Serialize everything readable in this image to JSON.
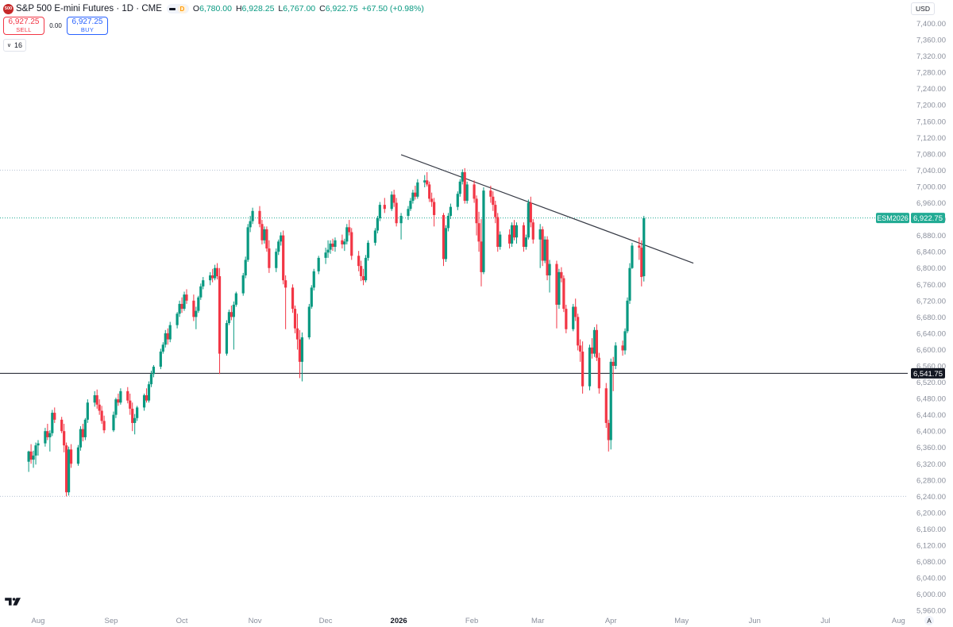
{
  "header": {
    "logo_text": "500",
    "symbol": "S&P 500 E-mini Futures",
    "interval": "1D",
    "exchange": "CME",
    "market_badge": "D",
    "open_label": "O",
    "open_value": "6,780.00",
    "high_label": "H",
    "high_value": "6,928.25",
    "low_label": "L",
    "low_value": "6,767.00",
    "close_label": "C",
    "close_value": "6,922.75",
    "change": "+67.50 (+0.98%)"
  },
  "trade": {
    "sell_price": "6,927.25",
    "sell_label": "SELL",
    "spread": "0.00",
    "buy_price": "6,927.25",
    "buy_label": "BUY"
  },
  "quantity": "16",
  "currency": "USD",
  "auto_label": "A",
  "colors": {
    "up": "#089981",
    "down": "#f23645",
    "grid_dotted": "#b7c3d3",
    "last_price": "#22ab94",
    "axis_text": "#8a8f9c"
  },
  "chart_data": {
    "type": "candlestick",
    "symbol_label": "ESM2026",
    "last_price": 6922.75,
    "last_price_label": "6,922.75",
    "y_axis": {
      "min": 5960,
      "max": 7400,
      "step": 40,
      "tick_labels": [
        "7,400.00",
        "7,360.00",
        "7,320.00",
        "7,280.00",
        "7,240.00",
        "7,200.00",
        "7,160.00",
        "7,120.00",
        "7,080.00",
        "7,040.00",
        "7,000.00",
        "6,960.00",
        "6,920.00",
        "6,880.00",
        "6,840.00",
        "6,800.00",
        "6,760.00",
        "6,720.00",
        "6,680.00",
        "6,640.00",
        "6,600.00",
        "6,560.00",
        "6,520.00",
        "6,480.00",
        "6,440.00",
        "6,400.00",
        "6,360.00",
        "6,320.00",
        "6,280.00",
        "6,240.00",
        "6,200.00",
        "6,160.00",
        "6,120.00",
        "6,080.00",
        "6,040.00",
        "6,000.00",
        "5,960.00"
      ]
    },
    "x_axis": {
      "labels": [
        "Aug",
        "Sep",
        "Oct",
        "Nov",
        "Dec",
        "2026",
        "Feb",
        "Mar",
        "Apr",
        "May",
        "Jun",
        "Jul",
        "Aug"
      ]
    },
    "horizontal_levels": [
      {
        "value": 6541.75,
        "label": "6,541.75",
        "style": "solid"
      },
      {
        "value": 7040,
        "style": "dotted"
      },
      {
        "value": 6240,
        "style": "dotted"
      }
    ],
    "trendline": {
      "from": {
        "date": "2026-01-02",
        "value": 7078
      },
      "to": {
        "date": "2026-05-06",
        "value": 6812
      }
    },
    "candles": [
      [
        "2025-07-28",
        6325,
        6352,
        6300,
        6350
      ],
      [
        "2025-07-29",
        6350,
        6368,
        6320,
        6330
      ],
      [
        "2025-07-30",
        6330,
        6352,
        6310,
        6340
      ],
      [
        "2025-07-31",
        6340,
        6372,
        6318,
        6365
      ],
      [
        "2025-08-01",
        6365,
        6378,
        6340,
        6370
      ],
      [
        "2025-08-04",
        6370,
        6408,
        6362,
        6400
      ],
      [
        "2025-08-05",
        6400,
        6418,
        6378,
        6385
      ],
      [
        "2025-08-06",
        6385,
        6402,
        6350,
        6395
      ],
      [
        "2025-08-07",
        6395,
        6452,
        6388,
        6445
      ],
      [
        "2025-08-08",
        6445,
        6458,
        6420,
        6428
      ],
      [
        "2025-08-11",
        6428,
        6435,
        6395,
        6400
      ],
      [
        "2025-08-12",
        6400,
        6418,
        6348,
        6365
      ],
      [
        "2025-08-13",
        6365,
        6372,
        6240,
        6250
      ],
      [
        "2025-08-14",
        6250,
        6362,
        6242,
        6355
      ],
      [
        "2025-08-15",
        6355,
        6368,
        6310,
        6320
      ],
      [
        "2025-08-18",
        6320,
        6366,
        6315,
        6360
      ],
      [
        "2025-08-19",
        6360,
        6412,
        6352,
        6405
      ],
      [
        "2025-08-20",
        6405,
        6418,
        6375,
        6385
      ],
      [
        "2025-08-21",
        6385,
        6432,
        6378,
        6428
      ],
      [
        "2025-08-22",
        6428,
        6478,
        6420,
        6470
      ],
      [
        "2025-08-25",
        6470,
        6498,
        6460,
        6488
      ],
      [
        "2025-08-26",
        6488,
        6502,
        6455,
        6465
      ],
      [
        "2025-08-27",
        6465,
        6478,
        6440,
        6450
      ],
      [
        "2025-08-28",
        6450,
        6462,
        6418,
        6425
      ],
      [
        "2025-08-29",
        6425,
        6438,
        6395,
        6402
      ],
      [
        "2025-09-02",
        6402,
        6448,
        6398,
        6440
      ],
      [
        "2025-09-03",
        6440,
        6482,
        6432,
        6478
      ],
      [
        "2025-09-04",
        6478,
        6492,
        6462,
        6470
      ],
      [
        "2025-09-05",
        6470,
        6505,
        6465,
        6498
      ],
      [
        "2025-09-08",
        6498,
        6508,
        6468,
        6475
      ],
      [
        "2025-09-09",
        6475,
        6492,
        6440,
        6455
      ],
      [
        "2025-09-10",
        6455,
        6470,
        6400,
        6420
      ],
      [
        "2025-09-11",
        6420,
        6442,
        6392,
        6432
      ],
      [
        "2025-09-12",
        6432,
        6462,
        6425,
        6458
      ],
      [
        "2025-09-15",
        6458,
        6492,
        6450,
        6488
      ],
      [
        "2025-09-16",
        6488,
        6505,
        6470,
        6475
      ],
      [
        "2025-09-17",
        6475,
        6522,
        6470,
        6515
      ],
      [
        "2025-09-18",
        6515,
        6548,
        6508,
        6540
      ],
      [
        "2025-09-19",
        6540,
        6562,
        6532,
        6558
      ],
      [
        "2025-09-22",
        6558,
        6602,
        6552,
        6595
      ],
      [
        "2025-09-23",
        6595,
        6618,
        6590,
        6612
      ],
      [
        "2025-09-24",
        6612,
        6648,
        6605,
        6640
      ],
      [
        "2025-09-25",
        6640,
        6652,
        6612,
        6625
      ],
      [
        "2025-09-26",
        6625,
        6668,
        6618,
        6660
      ],
      [
        "2025-09-29",
        6660,
        6692,
        6652,
        6688
      ],
      [
        "2025-09-30",
        6688,
        6720,
        6680,
        6712
      ],
      [
        "2025-10-01",
        6712,
        6728,
        6690,
        6700
      ],
      [
        "2025-10-02",
        6700,
        6742,
        6695,
        6735
      ],
      [
        "2025-10-03",
        6735,
        6748,
        6712,
        6720
      ],
      [
        "2025-10-06",
        6720,
        6735,
        6670,
        6680
      ],
      [
        "2025-10-07",
        6680,
        6705,
        6650,
        6695
      ],
      [
        "2025-10-08",
        6695,
        6732,
        6690,
        6728
      ],
      [
        "2025-10-09",
        6728,
        6762,
        6722,
        6755
      ],
      [
        "2025-10-10",
        6755,
        6778,
        6748,
        6770
      ],
      [
        "2025-10-13",
        6770,
        6790,
        6758,
        6782
      ],
      [
        "2025-10-14",
        6782,
        6798,
        6765,
        6775
      ],
      [
        "2025-10-15",
        6775,
        6808,
        6770,
        6800
      ],
      [
        "2025-10-16",
        6800,
        6812,
        6772,
        6780
      ],
      [
        "2025-10-17",
        6780,
        6800,
        6540,
        6590
      ],
      [
        "2025-10-20",
        6590,
        6672,
        6585,
        6665
      ],
      [
        "2025-10-21",
        6665,
        6698,
        6660,
        6692
      ],
      [
        "2025-10-22",
        6692,
        6708,
        6672,
        6680
      ],
      [
        "2025-10-23",
        6680,
        6718,
        6600,
        6710
      ],
      [
        "2025-10-24",
        6710,
        6742,
        6705,
        6738
      ],
      [
        "2025-10-27",
        6738,
        6788,
        6732,
        6782
      ],
      [
        "2025-10-28",
        6782,
        6828,
        6775,
        6820
      ],
      [
        "2025-10-29",
        6820,
        6908,
        6815,
        6900
      ],
      [
        "2025-10-30",
        6900,
        6928,
        6888,
        6915
      ],
      [
        "2025-10-31",
        6915,
        6948,
        6908,
        6940
      ],
      [
        "2025-11-03",
        6940,
        6952,
        6900,
        6908
      ],
      [
        "2025-11-04",
        6908,
        6918,
        6858,
        6868
      ],
      [
        "2025-11-05",
        6868,
        6902,
        6860,
        6895
      ],
      [
        "2025-11-06",
        6895,
        6902,
        6840,
        6848
      ],
      [
        "2025-11-07",
        6848,
        6868,
        6788,
        6800
      ],
      [
        "2025-11-10",
        6800,
        6848,
        6790,
        6840
      ],
      [
        "2025-11-11",
        6840,
        6870,
        6832,
        6865
      ],
      [
        "2025-11-12",
        6865,
        6888,
        6855,
        6880
      ],
      [
        "2025-11-13",
        6880,
        6892,
        6760,
        6770
      ],
      [
        "2025-11-14",
        6770,
        6782,
        6650,
        6752
      ],
      [
        "2025-11-17",
        6752,
        6760,
        6690,
        6700
      ],
      [
        "2025-11-18",
        6700,
        6708,
        6640,
        6652
      ],
      [
        "2025-11-19",
        6652,
        6688,
        6600,
        6625
      ],
      [
        "2025-11-20",
        6625,
        6648,
        6530,
        6570
      ],
      [
        "2025-11-21",
        6570,
        6642,
        6522,
        6630
      ],
      [
        "2025-11-24",
        6630,
        6712,
        6625,
        6705
      ],
      [
        "2025-11-25",
        6705,
        6758,
        6700,
        6752
      ],
      [
        "2025-11-26",
        6752,
        6798,
        6745,
        6792
      ],
      [
        "2025-11-28",
        6792,
        6830,
        6785,
        6825
      ],
      [
        "2025-12-01",
        6825,
        6850,
        6810,
        6838
      ],
      [
        "2025-12-02",
        6838,
        6868,
        6825,
        6845
      ],
      [
        "2025-12-03",
        6845,
        6868,
        6835,
        6860
      ],
      [
        "2025-12-04",
        6860,
        6872,
        6842,
        6852
      ],
      [
        "2025-12-05",
        6852,
        6875,
        6840,
        6868
      ],
      [
        "2025-12-08",
        6868,
        6882,
        6848,
        6858
      ],
      [
        "2025-12-09",
        6858,
        6872,
        6842,
        6865
      ],
      [
        "2025-12-10",
        6865,
        6908,
        6858,
        6900
      ],
      [
        "2025-12-11",
        6900,
        6918,
        6880,
        6888
      ],
      [
        "2025-12-12",
        6888,
        6898,
        6820,
        6830
      ],
      [
        "2025-12-15",
        6830,
        6842,
        6792,
        6805
      ],
      [
        "2025-12-16",
        6805,
        6818,
        6768,
        6780
      ],
      [
        "2025-12-17",
        6780,
        6798,
        6758,
        6770
      ],
      [
        "2025-12-18",
        6770,
        6832,
        6765,
        6825
      ],
      [
        "2025-12-19",
        6825,
        6868,
        6818,
        6862
      ],
      [
        "2025-12-22",
        6862,
        6898,
        6855,
        6892
      ],
      [
        "2025-12-23",
        6892,
        6928,
        6885,
        6922
      ],
      [
        "2025-12-24",
        6922,
        6962,
        6915,
        6955
      ],
      [
        "2025-12-26",
        6955,
        6972,
        6935,
        6945
      ],
      [
        "2025-12-29",
        6945,
        6988,
        6940,
        6980
      ],
      [
        "2025-12-30",
        6980,
        6992,
        6950,
        6960
      ],
      [
        "2025-12-31",
        6960,
        6972,
        6902,
        6910
      ],
      [
        "2026-01-02",
        6910,
        6935,
        6870,
        6928
      ],
      [
        "2026-01-05",
        6928,
        6952,
        6918,
        6945
      ],
      [
        "2026-01-06",
        6945,
        6972,
        6940,
        6965
      ],
      [
        "2026-01-07",
        6965,
        6992,
        6958,
        6985
      ],
      [
        "2026-01-08",
        6985,
        7002,
        6968,
        6975
      ],
      [
        "2026-01-09",
        6975,
        7018,
        6970,
        7010
      ],
      [
        "2026-01-12",
        7010,
        7028,
        6998,
        7015
      ],
      [
        "2026-01-13",
        7015,
        7035,
        7000,
        7005
      ],
      [
        "2026-01-14",
        7005,
        7012,
        6962,
        6970
      ],
      [
        "2026-01-15",
        6970,
        6985,
        6950,
        6962
      ],
      [
        "2026-01-16",
        6962,
        6972,
        6902,
        6930
      ],
      [
        "2026-01-20",
        6930,
        6935,
        6805,
        6822
      ],
      [
        "2026-01-21",
        6822,
        6905,
        6815,
        6898
      ],
      [
        "2026-01-22",
        6898,
        6935,
        6890,
        6928
      ],
      [
        "2026-01-23",
        6928,
        6958,
        6920,
        6950
      ],
      [
        "2026-01-26",
        6950,
        6988,
        6942,
        6982
      ],
      [
        "2026-01-27",
        6982,
        7018,
        6975,
        7012
      ],
      [
        "2026-01-28",
        7012,
        7042,
        7005,
        7035
      ],
      [
        "2026-01-29",
        7035,
        7045,
        6958,
        6965
      ],
      [
        "2026-01-30",
        6965,
        7012,
        6958,
        7005
      ],
      [
        "2026-02-02",
        7005,
        7015,
        6960,
        6970
      ],
      [
        "2026-02-03",
        6970,
        6978,
        6880,
        6910
      ],
      [
        "2026-02-04",
        6910,
        6938,
        6840,
        6865
      ],
      [
        "2026-02-05",
        6865,
        6920,
        6755,
        6790
      ],
      [
        "2026-02-06",
        6790,
        6998,
        6785,
        6990
      ],
      [
        "2026-02-09",
        6990,
        7002,
        6960,
        6975
      ],
      [
        "2026-02-10",
        6975,
        6988,
        6940,
        6955
      ],
      [
        "2026-02-11",
        6955,
        6965,
        6910,
        6925
      ],
      [
        "2026-02-12",
        6925,
        6935,
        6840,
        6852
      ],
      [
        "2026-02-13",
        6852,
        6890,
        6845,
        6882
      ],
      [
        "2026-02-17",
        6882,
        6895,
        6848,
        6860
      ],
      [
        "2026-02-18",
        6860,
        6912,
        6852,
        6905
      ],
      [
        "2026-02-19",
        6905,
        6918,
        6868,
        6875
      ],
      [
        "2026-02-20",
        6875,
        6912,
        6860,
        6905
      ],
      [
        "2026-02-23",
        6905,
        6912,
        6840,
        6852
      ],
      [
        "2026-02-24",
        6852,
        6882,
        6845,
        6875
      ],
      [
        "2026-02-25",
        6875,
        6968,
        6870,
        6960
      ],
      [
        "2026-02-26",
        6960,
        6975,
        6900,
        6912
      ],
      [
        "2026-02-27",
        6912,
        6920,
        6860,
        6870
      ],
      [
        "2026-03-02",
        6870,
        6908,
        6800,
        6895
      ],
      [
        "2026-03-03",
        6895,
        6902,
        6805,
        6818
      ],
      [
        "2026-03-04",
        6818,
        6878,
        6812,
        6870
      ],
      [
        "2026-03-05",
        6870,
        6878,
        6770,
        6782
      ],
      [
        "2026-03-06",
        6782,
        6820,
        6740,
        6810
      ],
      [
        "2026-03-09",
        6810,
        6818,
        6652,
        6710
      ],
      [
        "2026-03-10",
        6710,
        6798,
        6700,
        6790
      ],
      [
        "2026-03-11",
        6790,
        6802,
        6765,
        6775
      ],
      [
        "2026-03-12",
        6775,
        6782,
        6692,
        6700
      ],
      [
        "2026-03-13",
        6700,
        6710,
        6640,
        6650
      ],
      [
        "2026-03-16",
        6650,
        6712,
        6645,
        6705
      ],
      [
        "2026-03-17",
        6705,
        6725,
        6670,
        6680
      ],
      [
        "2026-03-18",
        6680,
        6688,
        6598,
        6610
      ],
      [
        "2026-03-19",
        6610,
        6625,
        6570,
        6595
      ],
      [
        "2026-03-20",
        6595,
        6620,
        6492,
        6510
      ],
      [
        "2026-03-23",
        6510,
        6612,
        6500,
        6605
      ],
      [
        "2026-03-24",
        6605,
        6628,
        6578,
        6590
      ],
      [
        "2026-03-25",
        6590,
        6655,
        6582,
        6648
      ],
      [
        "2026-03-26",
        6648,
        6662,
        6572,
        6580
      ],
      [
        "2026-03-27",
        6580,
        6592,
        6492,
        6505
      ],
      [
        "2026-03-30",
        6505,
        6518,
        6408,
        6420
      ],
      [
        "2026-03-31",
        6420,
        6428,
        6350,
        6378
      ],
      [
        "2026-04-01",
        6378,
        6578,
        6355,
        6570
      ],
      [
        "2026-04-02",
        6570,
        6582,
        6498,
        6560
      ],
      [
        "2026-04-03",
        6560,
        6618,
        6552,
        6610
      ],
      [
        "2026-04-06",
        6610,
        6622,
        6585,
        6598
      ],
      [
        "2026-04-07",
        6598,
        6652,
        6588,
        6645
      ],
      [
        "2026-04-08",
        6645,
        6728,
        6640,
        6720
      ],
      [
        "2026-04-09",
        6720,
        6812,
        6712,
        6800
      ],
      [
        "2026-04-10",
        6800,
        6862,
        6798,
        6855
      ],
      [
        "2026-04-13",
        6855,
        6875,
        6820,
        6850
      ],
      [
        "2026-04-14",
        6850,
        6868,
        6755,
        6778
      ],
      [
        "2026-04-15",
        6780,
        6928,
        6767,
        6922.75
      ]
    ]
  }
}
